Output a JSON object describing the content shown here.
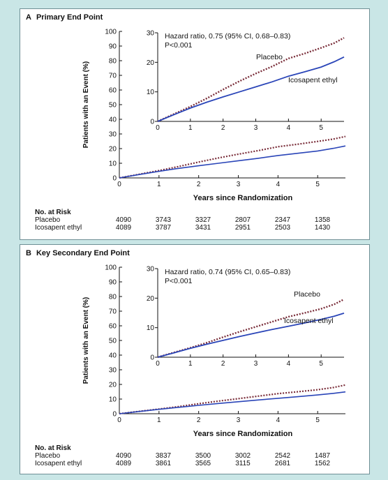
{
  "panels": [
    {
      "letter": "A",
      "title": "Primary End Point",
      "inset_hr_line1": "Hazard ratio, 0.75 (95% CI, 0.68–0.83)",
      "inset_hr_line2": "P<0.001",
      "risk_title": "No. at Risk",
      "risk": [
        {
          "name": "Placebo",
          "values": [
            "4090",
            "3743",
            "3327",
            "2807",
            "2347",
            "1358"
          ]
        },
        {
          "name": "Icosapent ethyl",
          "values": [
            "4089",
            "3787",
            "3431",
            "2951",
            "2503",
            "1430"
          ]
        }
      ]
    },
    {
      "letter": "B",
      "title": "Key Secondary End Point",
      "inset_hr_line1": "Hazard ratio, 0.74 (95% CI, 0.65–0.83)",
      "inset_hr_line2": "P<0.001",
      "risk_title": "No. at Risk",
      "risk": [
        {
          "name": "Placebo",
          "values": [
            "4090",
            "3837",
            "3500",
            "3002",
            "2542",
            "1487"
          ]
        },
        {
          "name": "Icosapent ethyl",
          "values": [
            "4089",
            "3861",
            "3565",
            "3115",
            "2681",
            "1562"
          ]
        }
      ]
    }
  ],
  "chart_data": [
    {
      "type": "line",
      "title": "Primary End Point",
      "xlabel": "Years since Randomization",
      "ylabel": "Patients with an Event (%)",
      "xlim": [
        0,
        5.7
      ],
      "ylim": [
        0,
        100
      ],
      "xticks": [
        0,
        1,
        2,
        3,
        4,
        5
      ],
      "yticks": [
        0,
        10,
        20,
        30,
        40,
        50,
        60,
        70,
        80,
        90,
        100
      ],
      "series": [
        {
          "name": "Placebo",
          "color": "#7a2e3a",
          "style": "dotted",
          "x": [
            0,
            0.5,
            1,
            1.5,
            2,
            2.5,
            3,
            3.5,
            4,
            4.5,
            5,
            5.4,
            5.7
          ],
          "y": [
            0,
            2.5,
            5.0,
            7.8,
            10.8,
            13.6,
            16.2,
            18.6,
            21.3,
            23.0,
            24.9,
            26.5,
            28.3
          ]
        },
        {
          "name": "Icosapent ethyl",
          "color": "#2a45b8",
          "style": "solid",
          "x": [
            0,
            0.5,
            1,
            1.5,
            2,
            2.5,
            3,
            3.5,
            4,
            4.5,
            5,
            5.4,
            5.7
          ],
          "y": [
            0,
            2.3,
            4.5,
            6.5,
            8.3,
            10.0,
            11.7,
            13.4,
            15.3,
            16.8,
            18.4,
            20.2,
            21.8
          ]
        }
      ],
      "inset": {
        "xlim": [
          0,
          5.7
        ],
        "ylim": [
          0,
          30
        ],
        "xticks": [
          0,
          1,
          2,
          3,
          4,
          5
        ],
        "yticks": [
          0,
          10,
          20,
          30
        ]
      }
    },
    {
      "type": "line",
      "title": "Key Secondary End Point",
      "xlabel": "Years since Randomization",
      "ylabel": "Patients with an Event (%)",
      "xlim": [
        0,
        5.7
      ],
      "ylim": [
        0,
        100
      ],
      "xticks": [
        0,
        1,
        2,
        3,
        4,
        5
      ],
      "yticks": [
        0,
        10,
        20,
        30,
        40,
        50,
        60,
        70,
        80,
        90,
        100
      ],
      "series": [
        {
          "name": "Placebo",
          "color": "#7a2e3a",
          "style": "dotted",
          "x": [
            0,
            0.5,
            1,
            1.5,
            2,
            2.5,
            3,
            3.5,
            4,
            4.5,
            5,
            5.4,
            5.7
          ],
          "y": [
            0,
            1.6,
            3.2,
            4.9,
            6.8,
            8.6,
            10.3,
            12.0,
            13.7,
            15.0,
            16.4,
            17.9,
            19.6
          ]
        },
        {
          "name": "Icosapent ethyl",
          "color": "#2a45b8",
          "style": "solid",
          "x": [
            0,
            0.5,
            1,
            1.5,
            2,
            2.5,
            3,
            3.5,
            4,
            4.5,
            5,
            5.4,
            5.7
          ],
          "y": [
            0,
            1.5,
            3.0,
            4.4,
            5.7,
            7.0,
            8.2,
            9.4,
            10.5,
            11.6,
            12.8,
            13.9,
            14.9
          ]
        }
      ],
      "inset": {
        "xlim": [
          0,
          5.7
        ],
        "ylim": [
          0,
          30
        ],
        "xticks": [
          0,
          1,
          2,
          3,
          4,
          5
        ],
        "yticks": [
          0,
          10,
          20,
          30
        ]
      }
    }
  ]
}
